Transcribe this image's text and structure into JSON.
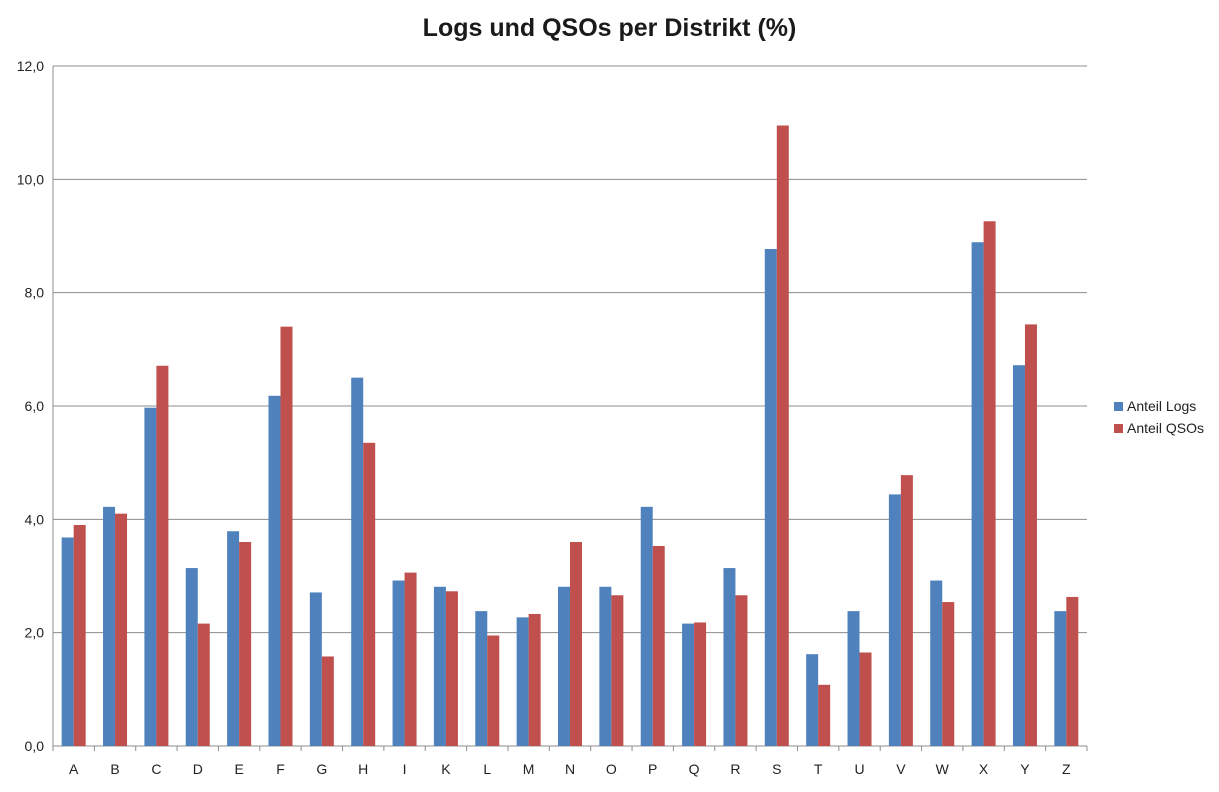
{
  "chart_data": {
    "type": "bar",
    "title": "Logs und QSOs per Distrikt (%)",
    "xlabel": "",
    "ylabel": "",
    "ylim": [
      0,
      12
    ],
    "yticks": [
      "0,0",
      "2,0",
      "4,0",
      "6,0",
      "8,0",
      "10,0",
      "12,0"
    ],
    "grid": true,
    "legend_position": "right",
    "categories": [
      "A",
      "B",
      "C",
      "D",
      "E",
      "F",
      "G",
      "H",
      "I",
      "K",
      "L",
      "M",
      "N",
      "O",
      "P",
      "Q",
      "R",
      "S",
      "T",
      "U",
      "V",
      "W",
      "X",
      "Y",
      "Z"
    ],
    "series": [
      {
        "name": "Anteil Logs",
        "color": "#4f81bd",
        "values": [
          3.68,
          4.22,
          5.97,
          3.14,
          3.79,
          6.18,
          2.71,
          6.5,
          2.92,
          2.81,
          2.38,
          2.27,
          2.81,
          2.81,
          4.22,
          2.16,
          3.14,
          8.77,
          1.62,
          2.38,
          4.44,
          2.92,
          8.89,
          6.72,
          2.38
        ]
      },
      {
        "name": "Anteil QSOs",
        "color": "#c0504d",
        "values": [
          3.9,
          4.1,
          6.71,
          2.16,
          3.6,
          7.4,
          1.58,
          5.35,
          3.06,
          2.73,
          1.95,
          2.33,
          3.6,
          2.66,
          3.53,
          2.18,
          2.66,
          10.95,
          1.08,
          1.65,
          4.78,
          2.54,
          9.26,
          7.44,
          2.63
        ]
      }
    ]
  }
}
